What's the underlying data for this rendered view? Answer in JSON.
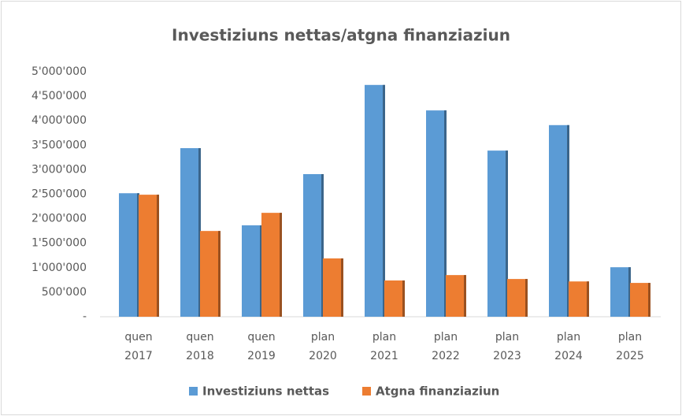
{
  "chart_data": {
    "type": "bar",
    "title": "Investiziuns nettas/atgna finanziaziun",
    "categories": [
      [
        "quen",
        "2017"
      ],
      [
        "quen",
        "2018"
      ],
      [
        "quen",
        "2019"
      ],
      [
        "plan",
        "2020"
      ],
      [
        "plan",
        "2021"
      ],
      [
        "plan",
        "2022"
      ],
      [
        "plan",
        "2023"
      ],
      [
        "plan",
        "2024"
      ],
      [
        "plan",
        "2025"
      ]
    ],
    "series": [
      {
        "name": "Investiziuns nettas",
        "color": "#5b9bd5",
        "values": [
          2520000,
          3440000,
          1865000,
          2910000,
          4730000,
          4210000,
          3390000,
          3910000,
          1010000
        ]
      },
      {
        "name": "Atgna finanziaziun",
        "color": "#ed7d31",
        "values": [
          2490000,
          1750000,
          2120000,
          1190000,
          740000,
          850000,
          770000,
          720000,
          690000
        ]
      }
    ],
    "ylim": [
      0,
      5000000
    ],
    "yticks": [
      {
        "value": 0,
        "label": "-"
      },
      {
        "value": 500000,
        "label": "500'000"
      },
      {
        "value": 1000000,
        "label": "1'000'000"
      },
      {
        "value": 1500000,
        "label": "1'500'000"
      },
      {
        "value": 2000000,
        "label": "2'000'000"
      },
      {
        "value": 2500000,
        "label": "2'500'000"
      },
      {
        "value": 3000000,
        "label": "3'000'000"
      },
      {
        "value": 3500000,
        "label": "3'500'000"
      },
      {
        "value": 4000000,
        "label": "4'000'000"
      },
      {
        "value": 4500000,
        "label": "4'500'000"
      },
      {
        "value": 5000000,
        "label": "5'000'000"
      }
    ],
    "grid": false,
    "legend": "bottom"
  }
}
